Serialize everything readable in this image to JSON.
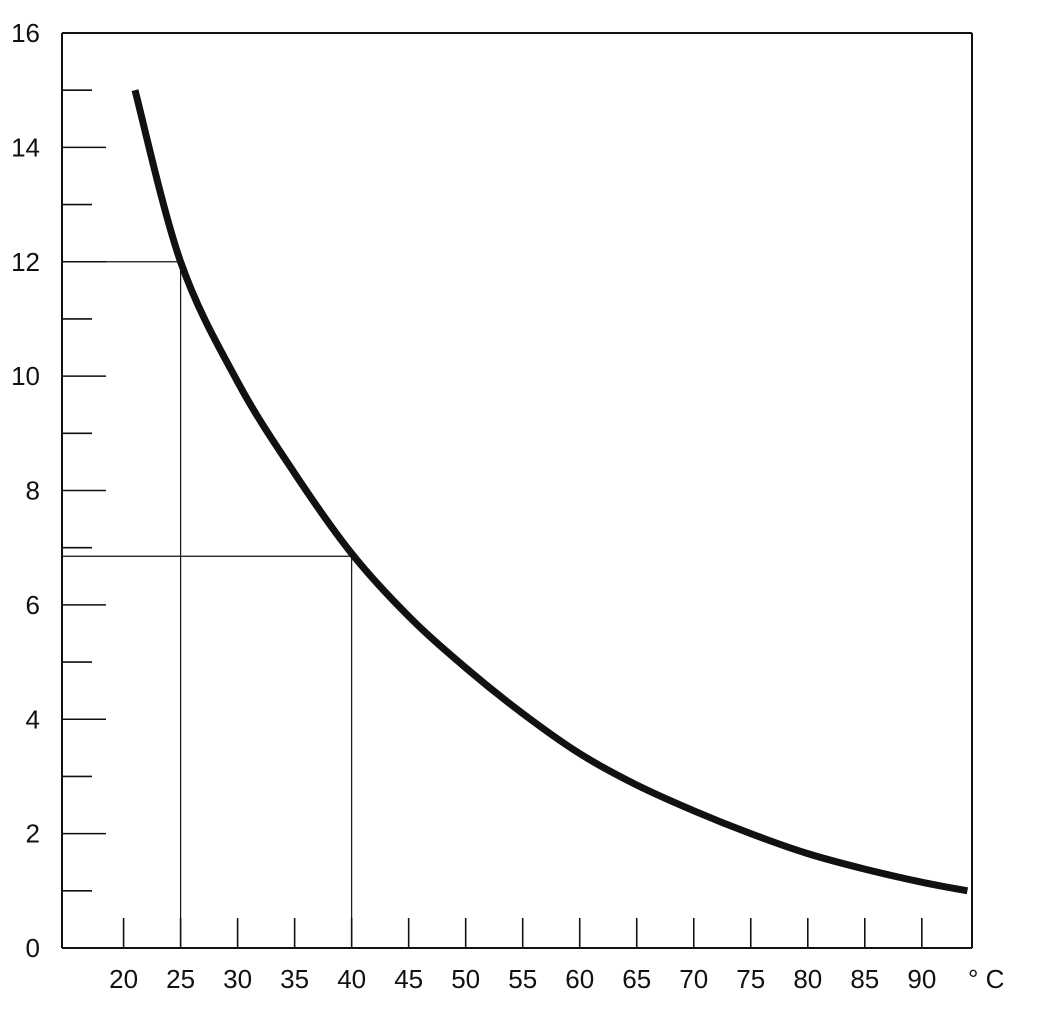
{
  "chart_data": {
    "type": "line",
    "x_ticks": [
      20,
      25,
      30,
      35,
      40,
      45,
      50,
      55,
      60,
      65,
      70,
      75,
      80,
      85,
      90
    ],
    "y_ticks": [
      0,
      2,
      4,
      6,
      8,
      10,
      12,
      14,
      16
    ],
    "y_minor_ticks": [
      1,
      3,
      5,
      7,
      9,
      11,
      13,
      15
    ],
    "x_unit": "° C",
    "xlim": [
      14.6,
      94.4
    ],
    "ylim": [
      0,
      16
    ],
    "grid": false,
    "series": [
      {
        "x": [
          21,
          25,
          30,
          35,
          40,
          45,
          50,
          55,
          60,
          65,
          70,
          75,
          80,
          85,
          90,
          94
        ],
        "y": [
          15.0,
          12.0,
          9.9,
          8.3,
          6.9,
          5.8,
          4.9,
          4.1,
          3.4,
          2.85,
          2.4,
          2.0,
          1.65,
          1.38,
          1.15,
          1.0
        ]
      }
    ],
    "reference_lines": [
      {
        "x": 25,
        "y": 12
      },
      {
        "x": 40,
        "y": 6.85
      }
    ]
  }
}
